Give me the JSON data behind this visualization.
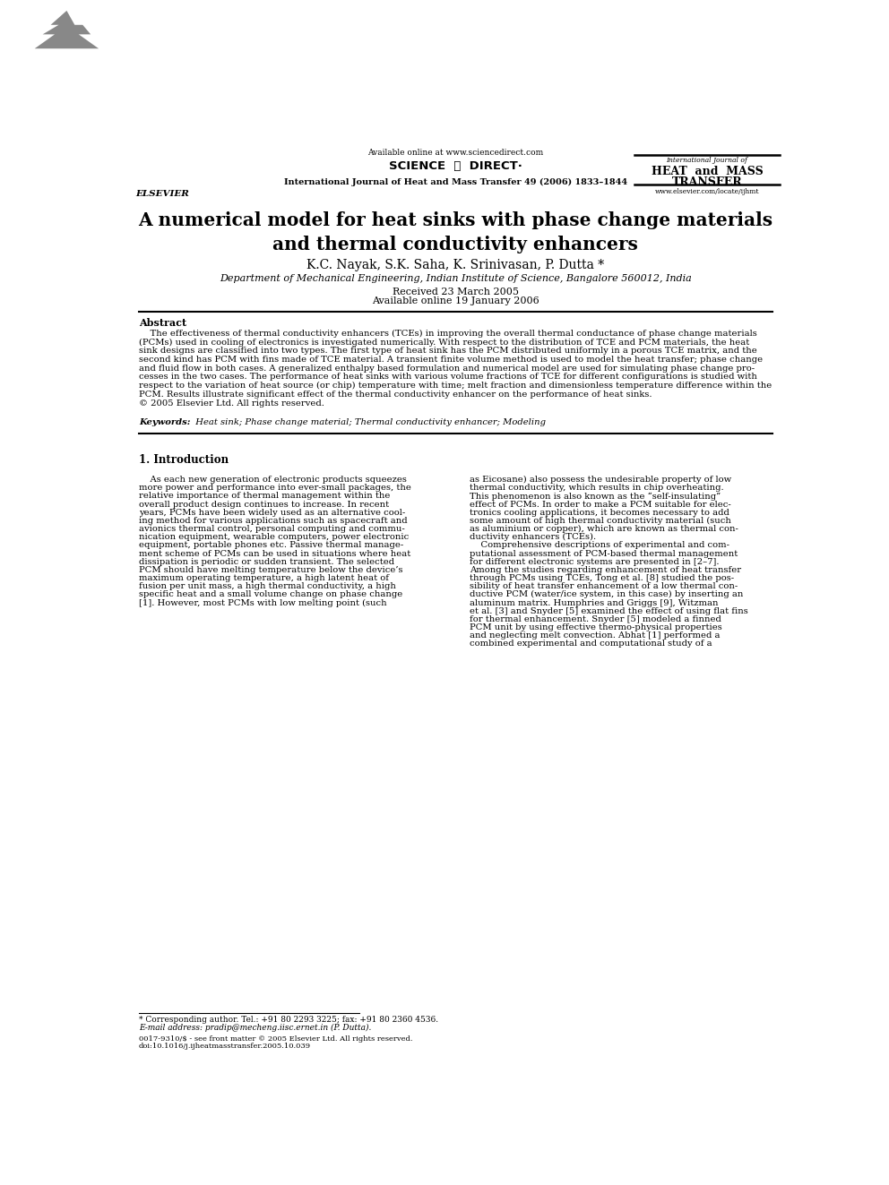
{
  "bg_color": "#ffffff",
  "page_width": 9.92,
  "page_height": 13.23,
  "header": {
    "available_online": "Available online at www.sciencedirect.com",
    "journal_line": "International Journal of Heat and Mass Transfer 49 (2006) 1833–1844",
    "journal_name_top": "International Journal of",
    "journal_name_bold": "HEAT  and  MASS",
    "journal_name_bold2": "TRANSFER",
    "website": "www.elsevier.com/locate/ijhmt",
    "elsevier_text": "ELSEVIER",
    "science_direct": "SCIENCE  ⓐ  DIRECT·"
  },
  "title": "A numerical model for heat sinks with phase change materials\nand thermal conductivity enhancers",
  "authors": "K.C. Nayak, S.K. Saha, K. Srinivasan, P. Dutta *",
  "affiliation": "Department of Mechanical Engineering, Indian Institute of Science, Bangalore 560012, India",
  "received": "Received 23 March 2005",
  "available": "Available online 19 January 2006",
  "abstract_heading": "Abstract",
  "abstract_lines": [
    "    The effectiveness of thermal conductivity enhancers (TCEs) in improving the overall thermal conductance of phase change materials",
    "(PCMs) used in cooling of electronics is investigated numerically. With respect to the distribution of TCE and PCM materials, the heat",
    "sink designs are classified into two types. The first type of heat sink has the PCM distributed uniformly in a porous TCE matrix, and the",
    "second kind has PCM with fins made of TCE material. A transient finite volume method is used to model the heat transfer; phase change",
    "and fluid flow in both cases. A generalized enthalpy based formulation and numerical model are used for simulating phase change pro-",
    "cesses in the two cases. The performance of heat sinks with various volume fractions of TCE for different configurations is studied with",
    "respect to the variation of heat source (or chip) temperature with time; melt fraction and dimensionless temperature difference within the",
    "PCM. Results illustrate significant effect of the thermal conductivity enhancer on the performance of heat sinks.",
    "© 2005 Elsevier Ltd. All rights reserved."
  ],
  "keywords_label": "Keywords:",
  "keywords_text": "  Heat sink; Phase change material; Thermal conductivity enhancer; Modeling",
  "section1_heading": "1. Introduction",
  "col1_lines": [
    "    As each new generation of electronic products squeezes",
    "more power and performance into ever-small packages, the",
    "relative importance of thermal management within the",
    "overall product design continues to increase. In recent",
    "years, PCMs have been widely used as an alternative cool-",
    "ing method for various applications such as spacecraft and",
    "avionics thermal control, personal computing and commu-",
    "nication equipment, wearable computers, power electronic",
    "equipment, portable phones etc. Passive thermal manage-",
    "ment scheme of PCMs can be used in situations where heat",
    "dissipation is periodic or sudden transient. The selected",
    "PCM should have melting temperature below the device’s",
    "maximum operating temperature, a high latent heat of",
    "fusion per unit mass, a high thermal conductivity, a high",
    "specific heat and a small volume change on phase change",
    "[1]. However, most PCMs with low melting point (such"
  ],
  "col2_lines": [
    "as Eicosane) also possess the undesirable property of low",
    "thermal conductivity, which results in chip overheating.",
    "This phenomenon is also known as the “self-insulating”",
    "effect of PCMs. In order to make a PCM suitable for elec-",
    "tronics cooling applications, it becomes necessary to add",
    "some amount of high thermal conductivity material (such",
    "as aluminium or copper), which are known as thermal con-",
    "ductivity enhancers (TCEs).",
    "    Comprehensive descriptions of experimental and com-",
    "putational assessment of PCM-based thermal management",
    "for different electronic systems are presented in [2–7].",
    "Among the studies regarding enhancement of heat transfer",
    "through PCMs using TCEs, Tong et al. [8] studied the pos-",
    "sibility of heat transfer enhancement of a low thermal con-",
    "ductive PCM (water/ice system, in this case) by inserting an",
    "aluminum matrix. Humphries and Griggs [9], Witzman",
    "et al. [3] and Snyder [5] examined the effect of using flat fins",
    "for thermal enhancement. Snyder [5] modeled a finned",
    "PCM unit by using effective thermo-physical properties",
    "and neglecting melt convection. Abhat [1] performed a",
    "combined experimental and computational study of a"
  ],
  "footnote_star": "* Corresponding author. Tel.: +91 80 2293 3225; fax: +91 80 2360 4536.",
  "footnote_email": "E-mail address: pradip@mecheng.iisc.ernet.in (P. Dutta).",
  "bottom_line1": "0017-9310/$ - see front matter © 2005 Elsevier Ltd. All rights reserved.",
  "bottom_line2": "doi:10.1016/j.ijheatmasstransfer.2005.10.039"
}
